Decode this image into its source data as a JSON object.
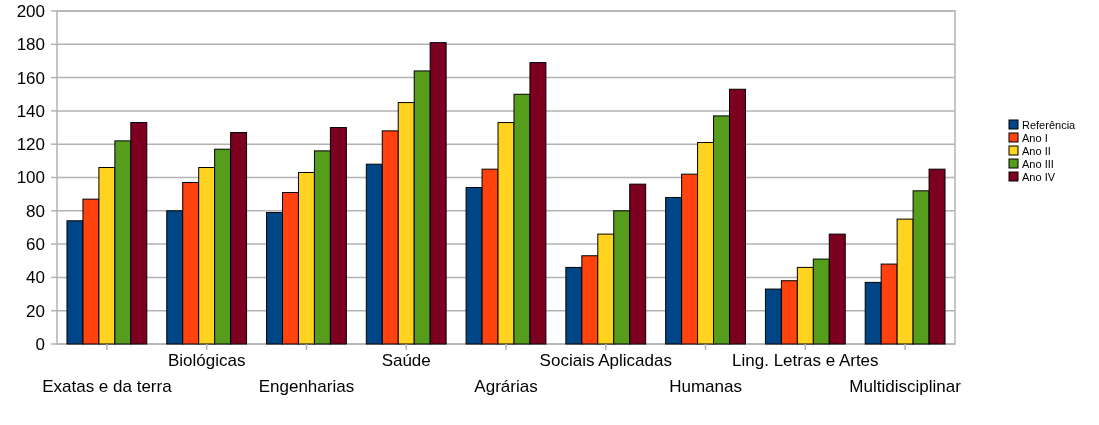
{
  "chart_data": {
    "type": "bar",
    "categories": [
      "Exatas e da terra",
      "Biológicas",
      "Engenharias",
      "Saúde",
      "Agrárias",
      "Sociais Aplicadas",
      "Humanas",
      "Ling. Letras e Artes",
      "Multidisciplinar"
    ],
    "series": [
      {
        "name": "Referência",
        "color": "#004586",
        "values": [
          74,
          80,
          79,
          108,
          94,
          46,
          88,
          33,
          37
        ]
      },
      {
        "name": "Ano I",
        "color": "#ff420e",
        "values": [
          87,
          97,
          91,
          128,
          105,
          53,
          102,
          38,
          48
        ]
      },
      {
        "name": "Ano II",
        "color": "#ffd320",
        "values": [
          106,
          106,
          103,
          145,
          133,
          66,
          121,
          46,
          75
        ]
      },
      {
        "name": "Ano III",
        "color": "#579d1c",
        "values": [
          122,
          117,
          116,
          164,
          150,
          80,
          137,
          51,
          92
        ]
      },
      {
        "name": "Ano IV",
        "color": "#7e0021",
        "values": [
          133,
          127,
          130,
          181,
          169,
          96,
          153,
          66,
          105
        ]
      }
    ],
    "ylim": [
      0,
      200
    ],
    "yticks": [
      0,
      20,
      40,
      60,
      80,
      100,
      120,
      140,
      160,
      180,
      200
    ],
    "grid": "y",
    "legend": "right"
  }
}
